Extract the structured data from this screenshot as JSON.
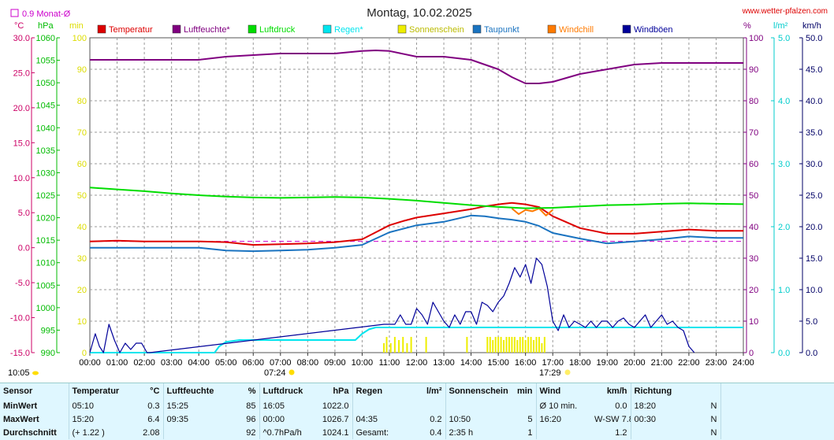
{
  "header": {
    "title": "Montag, 10.02.2025",
    "site": "www.wetter-pfalzen.com",
    "month_avg_label": "0.9 Monat-Ø",
    "month_avg_value": 0.9,
    "sunrise": "07:24",
    "sunset": "17:29",
    "current_time": "10:05"
  },
  "units": {
    "temp": "°C",
    "hpa": "hPa",
    "min": "min",
    "pct": "%",
    "rain": "l/m²",
    "wind": "km/h"
  },
  "colors": {
    "temperature": "#dd0000",
    "humidity": "#800080",
    "pressure": "#00dd00",
    "rain": "#00e5ee",
    "sunshine": "#eeee00",
    "dewpoint": "#1a73c0",
    "windchill": "#ff7a00",
    "gusts": "#000099"
  },
  "chart_data": {
    "type": "line",
    "title": "Montag, 10.02.2025",
    "legend": [
      {
        "key": "temperature",
        "label": "Temperatur"
      },
      {
        "key": "humidity",
        "label": "Luftfeuchte*"
      },
      {
        "key": "pressure",
        "label": "Luftdruck"
      },
      {
        "key": "rain",
        "label": "Regen*"
      },
      {
        "key": "sunshine",
        "label": "Sonnenschein"
      },
      {
        "key": "dewpoint",
        "label": "Taupunkt"
      },
      {
        "key": "windchill",
        "label": "Windchill"
      },
      {
        "key": "gusts",
        "label": "Windböen"
      }
    ],
    "x_ticks": [
      "00:00",
      "01:00",
      "02:00",
      "03:00",
      "04:00",
      "05:00",
      "06:00",
      "07:00",
      "08:00",
      "09:00",
      "10:00",
      "11:00",
      "12:00",
      "13:00",
      "14:00",
      "15:00",
      "16:00",
      "17:00",
      "18:00",
      "19:00",
      "20:00",
      "21:00",
      "22:00",
      "23:00",
      "24:00"
    ],
    "axes": {
      "temp": {
        "ylim": [
          -15,
          30
        ],
        "ticks": [
          "30.0",
          "25.0",
          "20.0",
          "15.0",
          "10.0",
          "5.0",
          "0.0",
          "-5.0",
          "-10.0",
          "-15.0"
        ]
      },
      "hpa": {
        "ylim": [
          990,
          1060
        ],
        "ticks": [
          "1060",
          "1055",
          "1050",
          "1045",
          "1040",
          "1035",
          "1030",
          "1025",
          "1020",
          "1015",
          "1010",
          "1005",
          "1000",
          "995",
          "990"
        ]
      },
      "min": {
        "ylim": [
          0,
          100
        ],
        "ticks": [
          "100",
          "90",
          "80",
          "70",
          "60",
          "50",
          "40",
          "30",
          "20",
          "10",
          "0"
        ]
      },
      "pct": {
        "ylim": [
          0,
          100
        ],
        "ticks": [
          "100",
          "90",
          "80",
          "70",
          "60",
          "50",
          "40",
          "30",
          "20",
          "10",
          "0"
        ]
      },
      "rain": {
        "ylim": [
          0,
          5
        ],
        "ticks": [
          "5.0",
          "4.0",
          "3.0",
          "2.0",
          "1.0",
          "0.0"
        ]
      },
      "wind": {
        "ylim": [
          0,
          50
        ],
        "ticks": [
          "50.0",
          "45.0",
          "40.0",
          "35.0",
          "30.0",
          "25.0",
          "20.0",
          "15.0",
          "10.0",
          "5.0",
          "0.0"
        ]
      }
    },
    "grid": true,
    "series": [
      {
        "key": "temperature",
        "axis": "temp",
        "x": [
          0,
          1,
          2,
          3,
          4,
          5,
          6,
          7,
          8,
          9,
          10,
          10.5,
          11,
          11.5,
          12,
          13,
          14,
          14.5,
          15,
          15.5,
          16,
          16.5,
          17,
          18,
          19,
          20,
          21,
          22,
          23,
          24
        ],
        "y": [
          0.9,
          1.0,
          0.9,
          0.9,
          0.9,
          0.8,
          0.4,
          0.5,
          0.6,
          0.8,
          1.2,
          2.2,
          3.2,
          3.8,
          4.3,
          4.9,
          5.5,
          5.9,
          6.2,
          6.4,
          6.2,
          5.8,
          4.5,
          2.8,
          2.0,
          2.0,
          2.3,
          2.6,
          2.4,
          2.4
        ]
      },
      {
        "key": "dewpoint",
        "axis": "temp",
        "x": [
          0,
          1,
          2,
          3,
          4,
          5,
          6,
          7,
          8,
          9,
          10,
          10.5,
          11,
          11.5,
          12,
          13,
          14,
          14.5,
          15,
          15.5,
          16,
          16.5,
          17,
          18,
          19,
          20,
          21,
          22,
          23,
          24
        ],
        "y": [
          0.0,
          0.0,
          0.0,
          0.0,
          0.0,
          -0.4,
          -0.5,
          -0.4,
          -0.3,
          0.0,
          0.4,
          1.3,
          2.2,
          2.7,
          3.2,
          3.7,
          4.6,
          4.5,
          4.2,
          4.0,
          3.7,
          3.1,
          2.1,
          1.3,
          0.6,
          0.9,
          1.2,
          1.6,
          1.4,
          1.4
        ]
      },
      {
        "key": "windchill",
        "axis": "temp",
        "x": [
          15.5,
          15.75,
          16,
          16.25,
          16.5,
          16.75,
          17
        ],
        "y": [
          5.6,
          4.8,
          5.4,
          5.2,
          5.6,
          4.6,
          5.4
        ]
      },
      {
        "key": "humidity",
        "axis": "pct",
        "x": [
          0,
          1,
          2,
          3,
          4,
          5,
          6,
          7,
          8,
          9,
          10,
          10.5,
          11,
          12,
          13,
          14,
          15,
          15.5,
          16,
          16.5,
          17,
          18,
          19,
          20,
          21,
          22,
          23,
          24
        ],
        "y": [
          93,
          93,
          93,
          93,
          93,
          94,
          94.5,
          95,
          95,
          95,
          95.8,
          96,
          95.8,
          94,
          94,
          93,
          90,
          87.5,
          85.5,
          85.5,
          86,
          88.5,
          90,
          91.5,
          92,
          92,
          92,
          92
        ]
      },
      {
        "key": "pressure",
        "axis": "hpa",
        "x": [
          0,
          1,
          2,
          3,
          4,
          5,
          6,
          7,
          8,
          9,
          10,
          11,
          12,
          13,
          14,
          15,
          16,
          17,
          18,
          19,
          20,
          21,
          22,
          23,
          24
        ],
        "y": [
          1026.7,
          1026.3,
          1025.9,
          1025.4,
          1025.0,
          1024.7,
          1024.5,
          1024.4,
          1024.5,
          1024.6,
          1024.5,
          1024.2,
          1023.8,
          1023.3,
          1022.8,
          1022.4,
          1022.1,
          1022.2,
          1022.5,
          1022.8,
          1022.9,
          1023.1,
          1023.2,
          1023.1,
          1023.0
        ]
      },
      {
        "key": "rain",
        "axis": "rain",
        "x": [
          0,
          4.58,
          4.75,
          5,
          5.5,
          6,
          7,
          8,
          9,
          9.75,
          10,
          10.25,
          10.5,
          11,
          12,
          14,
          17,
          20,
          24
        ],
        "y": [
          0,
          0,
          0.1,
          0.17,
          0.2,
          0.2,
          0.2,
          0.2,
          0.2,
          0.2,
          0.3,
          0.37,
          0.4,
          0.4,
          0.4,
          0.4,
          0.4,
          0.4,
          0.4
        ]
      },
      {
        "key": "gusts",
        "axis": "wind",
        "x": [
          0,
          0.2,
          0.35,
          0.5,
          0.7,
          0.9,
          1.1,
          1.3,
          1.5,
          1.7,
          1.9,
          2.1,
          2.2,
          10.8,
          11,
          11.2,
          11.4,
          11.6,
          11.8,
          12,
          12.2,
          12.4,
          12.6,
          12.8,
          13,
          13.2,
          13.4,
          13.6,
          13.8,
          14,
          14.2,
          14.4,
          14.6,
          14.8,
          15,
          15.2,
          15.4,
          15.6,
          15.8,
          16,
          16.2,
          16.4,
          16.6,
          16.8,
          17,
          17.2,
          17.4,
          17.6,
          17.8,
          18,
          18.2,
          18.4,
          18.6,
          18.8,
          19,
          19.2,
          19.4,
          19.6,
          19.8,
          20,
          20.2,
          20.4,
          20.6,
          20.8,
          21,
          21.2,
          21.4,
          21.6,
          21.8,
          22,
          22.2
        ],
        "y": [
          0,
          3,
          1,
          0,
          4.5,
          2,
          0,
          1.5,
          0.5,
          1.5,
          1.5,
          0,
          0,
          4.5,
          4.5,
          4.5,
          6,
          4.5,
          4.5,
          7,
          6,
          4.5,
          8,
          6.5,
          5,
          4,
          6,
          4.5,
          6.5,
          6.5,
          4.5,
          8,
          7.5,
          6.5,
          8,
          9,
          11,
          13.5,
          12,
          14,
          11,
          15,
          14,
          10.5,
          5,
          3.5,
          6,
          4,
          5,
          4.5,
          4,
          5,
          4,
          5,
          5,
          4,
          5,
          5.5,
          4.5,
          4,
          5,
          6,
          4,
          5,
          6,
          4.5,
          5,
          4,
          3.5,
          1,
          0
        ]
      },
      {
        "key": "sunshine",
        "axis": "min",
        "type": "bar",
        "x": [
          10.8,
          10.9,
          11.05,
          11.2,
          11.35,
          11.5,
          11.65,
          11.8,
          12.35,
          13.85,
          14.6,
          14.7,
          14.8,
          14.9,
          15.0,
          15.1,
          15.2,
          15.3,
          15.4,
          15.5,
          15.6,
          15.7,
          15.8,
          15.9,
          16.0,
          16.1,
          16.2,
          16.3,
          16.4,
          16.5,
          16.6,
          16.7
        ],
        "y": [
          3,
          5,
          3,
          5,
          4,
          5,
          3,
          5,
          5,
          5,
          5,
          5,
          4,
          5,
          5,
          5,
          4,
          5,
          5,
          5,
          5,
          4,
          5,
          5,
          4,
          5,
          5,
          4,
          5,
          5,
          3,
          5
        ]
      }
    ]
  },
  "stats": {
    "headers": {
      "sensor": "Sensor",
      "temp": "Temperatur",
      "temp_unit": "°C",
      "hum": "Luftfeuchte",
      "hum_unit": "%",
      "press": "Luftdruck",
      "press_unit": "hPa",
      "rain": "Regen",
      "rain_unit": "l/m²",
      "sun": "Sonnenschein",
      "sun_unit": "min",
      "wind": "Wind",
      "wind_unit": "km/h",
      "dir": "Richtung"
    },
    "rows": [
      {
        "label": "MinWert",
        "temp_time": "05:10",
        "temp_val": "0.3",
        "hum_time": "15:25",
        "hum_val": "85",
        "press_time": "16:05",
        "press_val": "1022.0",
        "rain_time": "",
        "rain_val": "",
        "sun_time": "",
        "sun_val": "",
        "wind_time": "Ø 10 min.",
        "wind_val": "0.0",
        "dir_time": "18:20",
        "dir_val": "N"
      },
      {
        "label": "MaxWert",
        "temp_time": "15:20",
        "temp_val": "6.4",
        "hum_time": "09:35",
        "hum_val": "96",
        "press_time": "00:00",
        "press_val": "1026.7",
        "rain_time": "04:35",
        "rain_val": "0.2",
        "sun_time": "10:50",
        "sun_val": "5",
        "wind_time": "16:20",
        "wind_val": "W-SW 7.8",
        "dir_time": "00:30",
        "dir_val": "N"
      },
      {
        "label": "Durchschnitt",
        "temp_time": "(+ 1.22 )",
        "temp_val": "2.08",
        "hum_time": "",
        "hum_val": "92",
        "press_time": "^0.7hPa/h",
        "press_val": "1024.1",
        "rain_time": "Gesamt:",
        "rain_val": "0.4",
        "sun_time": "2:35 h",
        "sun_val": "1",
        "wind_time": "",
        "wind_val": "1.2",
        "dir_time": "",
        "dir_val": "N"
      }
    ]
  }
}
